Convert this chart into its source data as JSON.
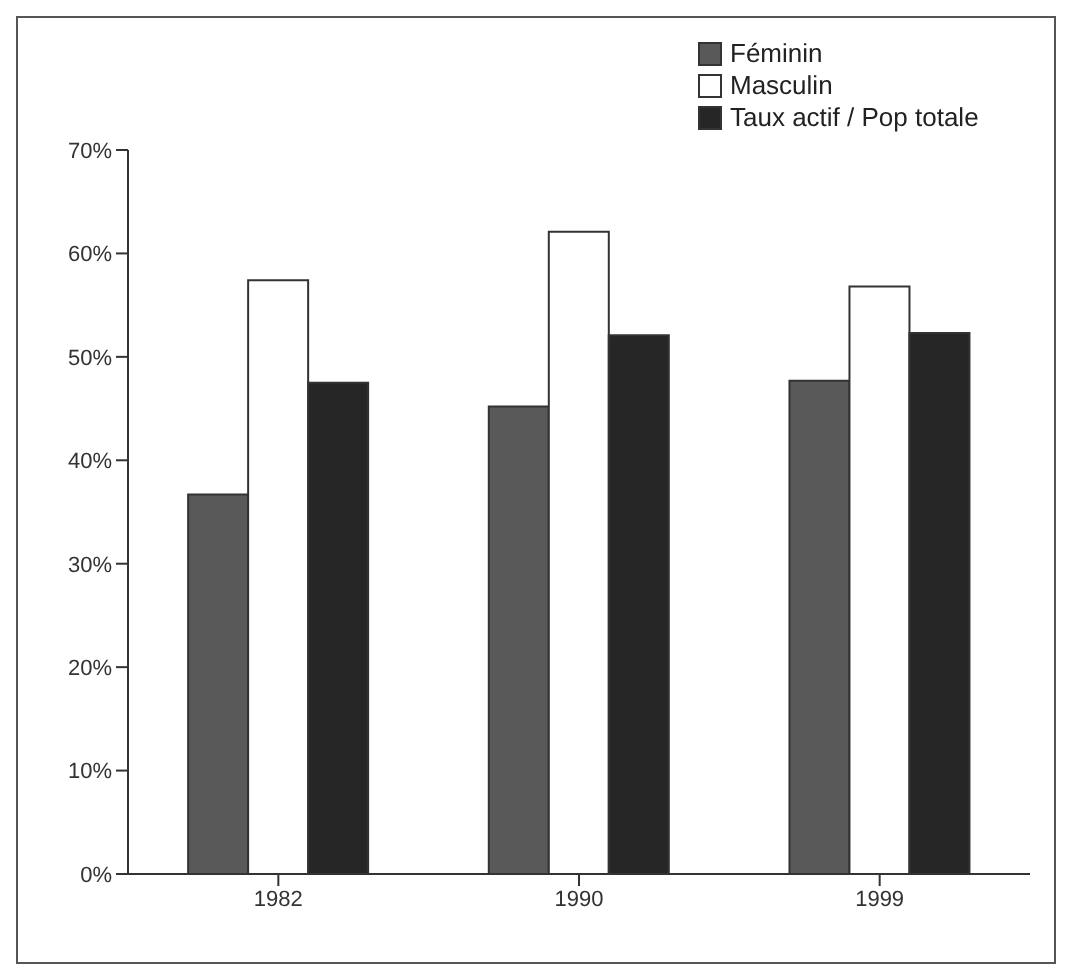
{
  "chart_data": {
    "type": "bar",
    "categories": [
      "1982",
      "1990",
      "1999"
    ],
    "series": [
      {
        "name": "Féminin",
        "color": "#595959",
        "values": [
          36.7,
          45.2,
          47.7
        ]
      },
      {
        "name": "Masculin",
        "color": "#ffffff",
        "values": [
          57.4,
          62.1,
          56.8
        ]
      },
      {
        "name": "Taux actif / Pop totale",
        "color": "#262626",
        "values": [
          47.5,
          52.1,
          52.3
        ]
      }
    ],
    "ylim": [
      0,
      70
    ],
    "yticks": [
      {
        "value": 0,
        "label": "0%"
      },
      {
        "value": 10,
        "label": "10%"
      },
      {
        "value": 20,
        "label": "20%"
      },
      {
        "value": 30,
        "label": "30%"
      },
      {
        "value": 40,
        "label": "40%"
      },
      {
        "value": 50,
        "label": "50%"
      },
      {
        "value": 60,
        "label": "60%"
      },
      {
        "value": 70,
        "label": "70%"
      }
    ],
    "grid": false,
    "legend": "top right"
  }
}
